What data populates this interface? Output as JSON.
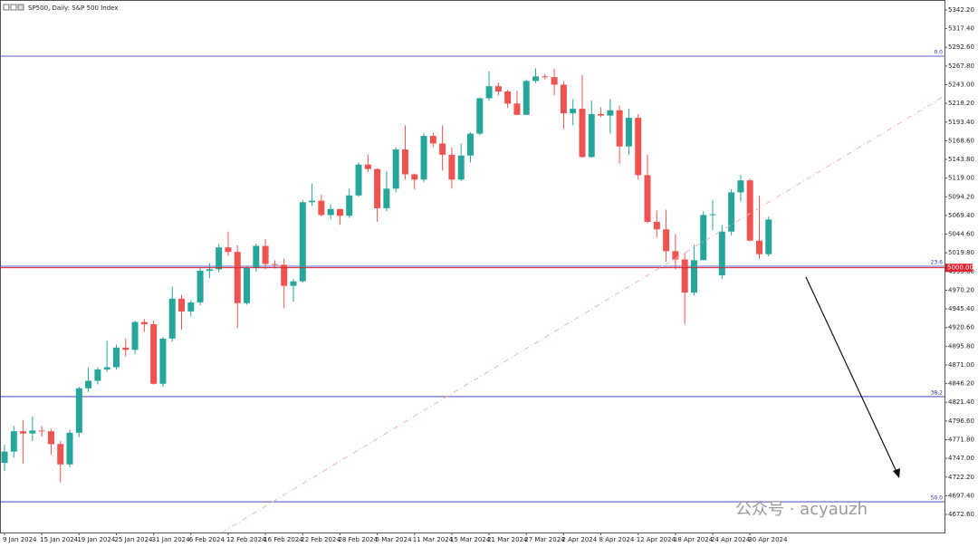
{
  "chart_data": {
    "type": "candlestick",
    "title": "SP500, Daily: S&P 500 Index",
    "categories": [
      "9 Jan 2024",
      null,
      null,
      null,
      "15 Jan 2024",
      null,
      null,
      null,
      "19 Jan 2024",
      null,
      null,
      null,
      "25 Jan 2024",
      null,
      null,
      null,
      "31 Jan 2024",
      null,
      null,
      null,
      "6 Feb 2024",
      null,
      null,
      null,
      "12 Feb 2024",
      null,
      null,
      null,
      "16 Feb 2024",
      null,
      null,
      null,
      "22 Feb 2024",
      null,
      null,
      null,
      "28 Feb 2024",
      null,
      null,
      null,
      "5 Mar 2024",
      null,
      null,
      null,
      "11 Mar 2024",
      null,
      null,
      null,
      "15 Mar 2024",
      null,
      null,
      null,
      "21 Mar 2024",
      null,
      null,
      null,
      "27 Mar 2024",
      null,
      null,
      null,
      "2 Apr 2024",
      null,
      null,
      null,
      "8 Apr 2024",
      null,
      null,
      null,
      "12 Apr 2024",
      null,
      null,
      null,
      "18 Apr 2024",
      null,
      null,
      null,
      "24 Apr 2024",
      null,
      null,
      null,
      "30 Apr 2024",
      null,
      null
    ],
    "open": [
      4741,
      4756,
      4783,
      4780,
      4784,
      4783,
      4766,
      4739,
      4781,
      4840,
      4850,
      4865,
      4868,
      4894,
      4891,
      4928,
      4925,
      4846,
      4906,
      4959,
      4942,
      4954,
      4996,
      4998,
      5027,
      5021,
      4953,
      5000,
      5029,
      5005,
      5004,
      4976,
      4982,
      5087,
      5089,
      5070,
      5078,
      5069,
      5096,
      5137,
      5131,
      5079,
      5105,
      5157,
      5124,
      5117,
      5175,
      5165,
      5150,
      5117,
      5149,
      5178,
      5225,
      5241,
      5234,
      5218,
      5203,
      5248,
      5254,
      5253,
      5243,
      5205,
      5211,
      5147,
      5204,
      5202,
      5209,
      5161,
      5199,
      5123,
      5061,
      5051,
      5022,
      5011,
      4967,
      5010,
      5070,
      4990,
      5048,
      5100,
      5116,
      5036,
      5018
    ],
    "high": [
      4765,
      4790,
      4798,
      4803,
      4790,
      4786,
      4770,
      4785,
      4842,
      4868,
      4868,
      4903,
      4898,
      4906,
      4930,
      4932,
      4930,
      4908,
      4975,
      4964,
      4957,
      5000,
      5006,
      5032,
      5048,
      5030,
      5002,
      5032,
      5038,
      5010,
      5012,
      4985,
      5090,
      5112,
      5097,
      5084,
      5075,
      5105,
      5140,
      5150,
      5132,
      5128,
      5160,
      5189,
      5125,
      5179,
      5179,
      5189,
      5160,
      5165,
      5180,
      5226,
      5261,
      5246,
      5236,
      5235,
      5250,
      5265,
      5257,
      5264,
      5248,
      5224,
      5256,
      5222,
      5213,
      5224,
      5215,
      5211,
      5204,
      5150,
      5076,
      5077,
      5045,
      5020,
      5030,
      5075,
      5090,
      5057,
      5104,
      5123,
      5118,
      5095,
      5068
    ],
    "low": [
      4730,
      4748,
      4740,
      4770,
      4776,
      4752,
      4715,
      4735,
      4775,
      4835,
      4845,
      4862,
      4865,
      4882,
      4885,
      4915,
      4845,
      4842,
      4902,
      4918,
      4935,
      4950,
      4986,
      4994,
      5016,
      4920,
      4951,
      4995,
      4998,
      4999,
      4946,
      4955,
      4980,
      5082,
      5068,
      5064,
      5057,
      5066,
      5094,
      5127,
      5061,
      5075,
      5100,
      5117,
      5104,
      5114,
      5160,
      5129,
      5105,
      5115,
      5140,
      5176,
      5222,
      5229,
      5212,
      5203,
      5203,
      5245,
      5250,
      5229,
      5184,
      5189,
      5146,
      5146,
      5200,
      5178,
      5138,
      5150,
      5117,
      5059,
      5040,
      5008,
      4998,
      4925,
      4963,
      5010,
      5050,
      4985,
      5043,
      5088,
      5035,
      5012,
      5015
    ],
    "close": [
      4756,
      4783,
      4780,
      4784,
      4783,
      4766,
      4739,
      4781,
      4840,
      4850,
      4865,
      4868,
      4894,
      4891,
      4928,
      4925,
      4846,
      4906,
      4959,
      4942,
      4954,
      4996,
      4998,
      5027,
      5021,
      4953,
      5000,
      5029,
      5005,
      5004,
      4976,
      4982,
      5087,
      5089,
      5070,
      5078,
      5069,
      5096,
      5137,
      5131,
      5079,
      5105,
      5157,
      5124,
      5117,
      5175,
      5165,
      5150,
      5117,
      5149,
      5178,
      5225,
      5241,
      5234,
      5218,
      5203,
      5248,
      5254,
      5253,
      5243,
      5205,
      5211,
      5147,
      5204,
      5202,
      5209,
      5161,
      5199,
      5123,
      5061,
      5051,
      5022,
      5011,
      4967,
      5010,
      5070,
      5071,
      5048,
      5100,
      5116,
      5036,
      5018,
      5064
    ],
    "up_color": "#26a69a",
    "down_color": "#ef5350",
    "ylim": [
      4648.6,
      5355.4
    ],
    "yticks": [
      {
        "value": 5342.2,
        "label": "5342.20"
      },
      {
        "value": 5317.4,
        "label": "5317.40"
      },
      {
        "value": 5292.6,
        "label": "5292.60"
      },
      {
        "value": 5267.8,
        "label": "5267.80"
      },
      {
        "value": 5243,
        "label": "5243.00"
      },
      {
        "value": 5218.2,
        "label": "5218.20"
      },
      {
        "value": 5193.4,
        "label": "5193.40"
      },
      {
        "value": 5168.6,
        "label": "5168.60"
      },
      {
        "value": 5143.8,
        "label": "5143.80"
      },
      {
        "value": 5119,
        "label": "5119.00"
      },
      {
        "value": 5094.2,
        "label": "5094.20"
      },
      {
        "value": 5069.4,
        "label": "5069.40"
      },
      {
        "value": 5044.6,
        "label": "5044.60"
      },
      {
        "value": 5019.8,
        "label": "5019.80"
      },
      {
        "value": 4995,
        "label": "4995.00"
      },
      {
        "value": 4970.2,
        "label": "4970.20"
      },
      {
        "value": 4945.4,
        "label": "4945.40"
      },
      {
        "value": 4920.6,
        "label": "4920.60"
      },
      {
        "value": 4895.8,
        "label": "4895.80"
      },
      {
        "value": 4871,
        "label": "4871.00"
      },
      {
        "value": 4846.2,
        "label": "4846.20"
      },
      {
        "value": 4821.4,
        "label": "4821.40"
      },
      {
        "value": 4796.6,
        "label": "4796.60"
      },
      {
        "value": 4771.8,
        "label": "4771.80"
      },
      {
        "value": 4747,
        "label": "4747.00"
      },
      {
        "value": 4722.2,
        "label": "4722.20"
      },
      {
        "value": 4697.4,
        "label": "4697.40"
      },
      {
        "value": 4672.6,
        "label": "4672.60"
      }
    ],
    "levels": [
      {
        "label": "0.0",
        "value": 5280.9
      },
      {
        "label": "23.6",
        "value": 5002
      },
      {
        "label": "38.2",
        "value": 4829
      },
      {
        "label": "50.0",
        "value": 4689.4
      }
    ],
    "level_color": "#2b2bb0",
    "price_line": {
      "value": 5000,
      "label": "5000.00"
    },
    "price_color": "#e0202a",
    "watermark": "公众号 · acyauzh"
  }
}
